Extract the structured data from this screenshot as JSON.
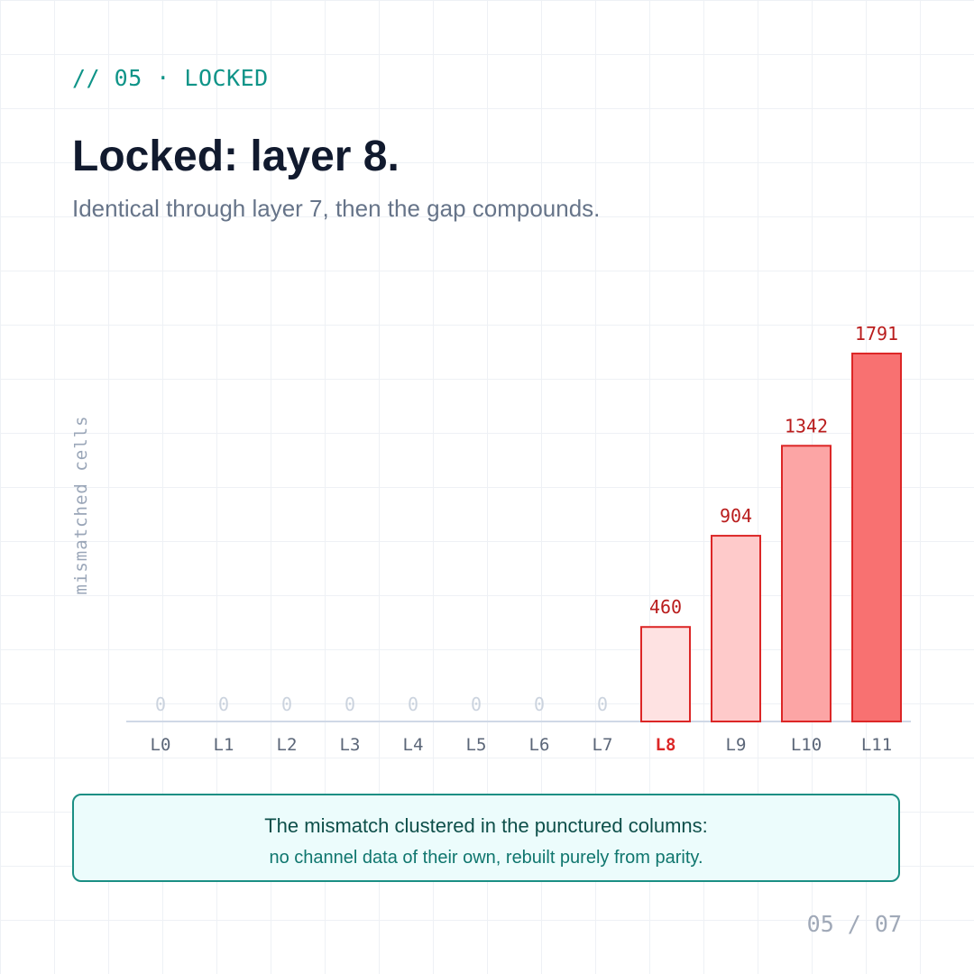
{
  "header": {
    "kicker": "// 05 · LOCKED",
    "title": "Locked: layer 8.",
    "subtitle": "Identical through layer 7, then the gap compounds."
  },
  "chart_data": {
    "type": "bar",
    "ylabel": "mismatched cells",
    "categories": [
      "L0",
      "L1",
      "L2",
      "L3",
      "L4",
      "L5",
      "L6",
      "L7",
      "L8",
      "L9",
      "L10",
      "L11"
    ],
    "values": [
      0,
      0,
      0,
      0,
      0,
      0,
      0,
      0,
      460,
      904,
      1342,
      1791
    ],
    "highlight_category": "L8",
    "grid": false,
    "colors": {
      "zero_label": "#cbd3de",
      "value_label": "#b91c1c",
      "tick_label": "#5b6678",
      "highlight_tick": "#dc2626",
      "bar_stroke": "#dc2626",
      "bar_fills": [
        "#fee2e2",
        "#fecaca",
        "#fca5a5",
        "#f87171"
      ],
      "baseline": "#cfd8e6",
      "ylabel": "#9aa6b8"
    }
  },
  "callout": {
    "line1": "The mismatch clustered in the punctured columns:",
    "line2": "no channel data of their own, rebuilt purely from parity."
  },
  "footer": {
    "page": "05 / 07"
  },
  "theme": {
    "accent": "#0f9488",
    "title_color": "#111a2e",
    "subtitle_color": "#667489"
  }
}
